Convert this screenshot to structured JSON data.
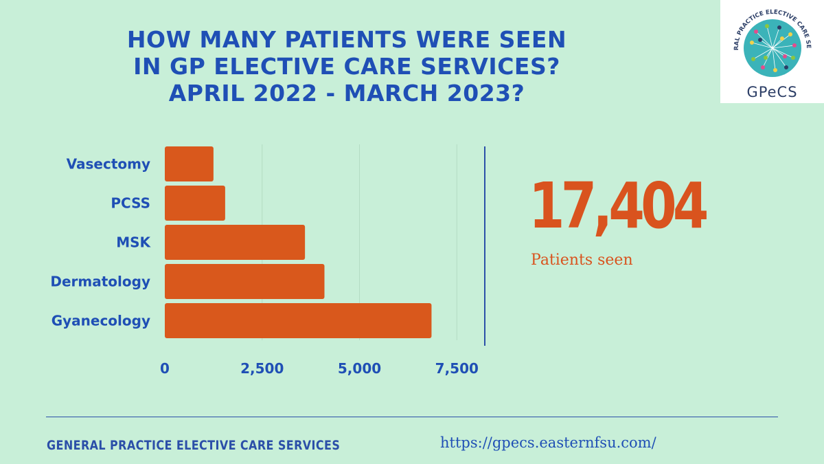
{
  "title_lines": [
    "HOW MANY PATIENTS WERE SEEN",
    "IN GP ELECTIVE CARE SERVICES?",
    "APRIL 2022 - MARCH 2023?"
  ],
  "logo": {
    "arc_text": "GENERAL PRACTICE ELECTIVE CARE SERVICE",
    "wordmark": "GPeCS",
    "colors": [
      "#3bb3b9",
      "#f2d14a",
      "#e34c8d",
      "#8cc63f",
      "#2c3e66"
    ]
  },
  "chart_data": {
    "type": "bar",
    "orientation": "horizontal",
    "categories": [
      "Vasectomy",
      "PCSS",
      "MSK",
      "Dermatology",
      "Gyanecology"
    ],
    "values": [
      1250,
      1550,
      3600,
      4100,
      6850
    ],
    "xlim": [
      0,
      8500
    ],
    "xticks": [
      0,
      2500,
      5000,
      7500
    ],
    "xtick_labels": [
      "0",
      "2,500",
      "5,000",
      "7,500"
    ],
    "grid": true,
    "bar_color": "#d9581c",
    "label_color": "#1f4fb5"
  },
  "summary": {
    "value": "17,404",
    "caption": "Patients seen"
  },
  "footer": {
    "organisation": "GENERAL PRACTICE ELECTIVE CARE SERVICES",
    "url": "https://gpecs.easternfsu.com/"
  }
}
